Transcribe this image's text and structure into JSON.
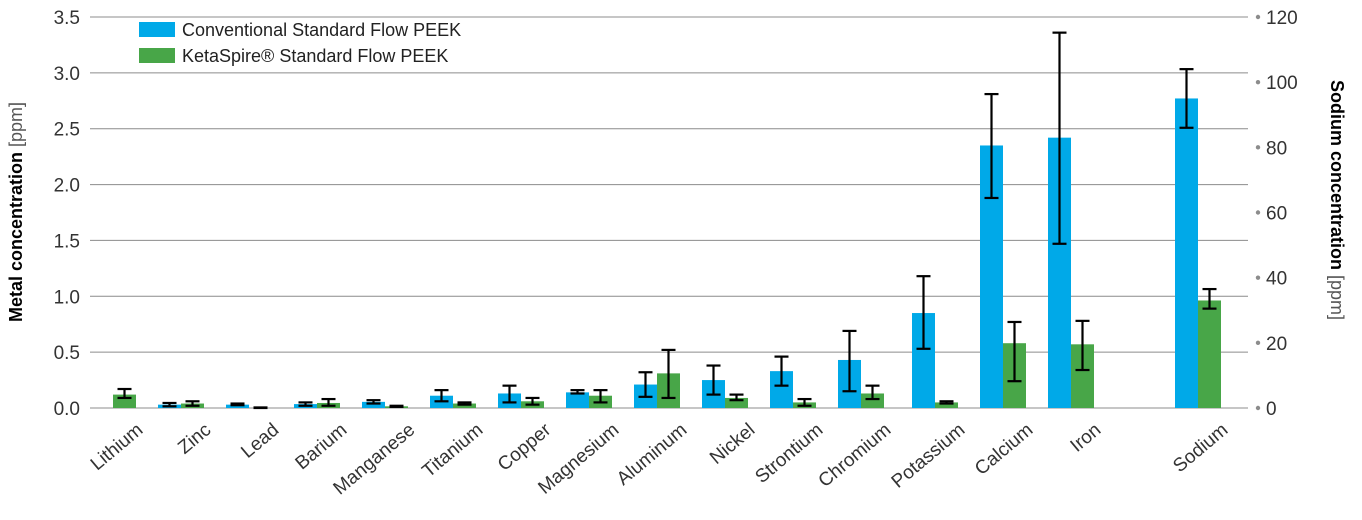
{
  "chart_data": {
    "type": "bar",
    "categories": [
      "Lithium",
      "Zinc",
      "Lead",
      "Barium",
      "Manganese",
      "Titanium",
      "Copper",
      "Magnesium",
      "Aluminum",
      "Nickel",
      "Strontium",
      "Chromium",
      "Potassium",
      "Calcium",
      "Iron",
      "Sodium"
    ],
    "secondary_axis_categories": [
      "Sodium"
    ],
    "series": [
      {
        "name": "Conventional Standard Flow PEEK",
        "color": "#00a9e8",
        "values": [
          0.0,
          0.03,
          0.03,
          0.035,
          0.055,
          0.11,
          0.13,
          0.14,
          0.21,
          0.25,
          0.33,
          0.43,
          0.85,
          2.35,
          2.42,
          95
        ],
        "err_low": [
          0.0,
          0.015,
          0.025,
          0.02,
          0.04,
          0.06,
          0.05,
          0.13,
          0.1,
          0.12,
          0.2,
          0.15,
          0.53,
          1.88,
          1.47,
          86
        ],
        "err_high": [
          0.0,
          0.045,
          0.04,
          0.05,
          0.07,
          0.16,
          0.2,
          0.16,
          0.32,
          0.38,
          0.46,
          0.69,
          1.18,
          2.81,
          3.36,
          104
        ]
      },
      {
        "name": "KetaSpire® Standard Flow PEEK",
        "color": "#48a648",
        "values": [
          0.12,
          0.04,
          0.0,
          0.045,
          0.015,
          0.04,
          0.06,
          0.11,
          0.31,
          0.09,
          0.05,
          0.13,
          0.05,
          0.58,
          0.57,
          33
        ],
        "err_low": [
          0.09,
          0.02,
          0.0,
          0.02,
          0.01,
          0.03,
          0.03,
          0.05,
          0.09,
          0.07,
          0.02,
          0.08,
          0.04,
          0.24,
          0.34,
          30.5
        ],
        "err_high": [
          0.17,
          0.06,
          0.005,
          0.08,
          0.02,
          0.05,
          0.09,
          0.16,
          0.52,
          0.12,
          0.08,
          0.2,
          0.06,
          0.77,
          0.78,
          36.5
        ]
      }
    ],
    "ylabel": {
      "bold": "Metal concentration",
      "unit": " [ppm]"
    },
    "y2label": {
      "bold": "Sodium concentration",
      "unit": " [ppm]"
    },
    "ylim": [
      0,
      3.5
    ],
    "y2lim": [
      0,
      120
    ],
    "yticks": [
      "0.0",
      "0.5",
      "1.0",
      "1.5",
      "2.0",
      "2.5",
      "3.0",
      "3.5"
    ],
    "y2ticks": [
      "0",
      "20",
      "40",
      "60",
      "80",
      "100",
      "120"
    ],
    "grid": true,
    "legend_position": "top-left"
  }
}
